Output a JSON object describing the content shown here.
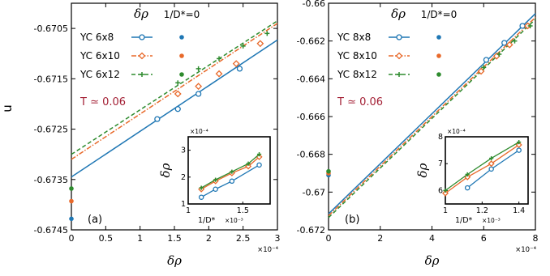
{
  "colors": {
    "blue": "#1f77b4",
    "orange": "#e8692a",
    "green": "#2e8b2e",
    "temp": "#a31f34"
  },
  "chart_data": [
    {
      "type": "scatter",
      "panel_label": "(a)",
      "temperature_label": "T ≃ 0.06",
      "legend_header": {
        "col1": "δρ",
        "col2": "1/D*=0"
      },
      "xlabel": "δρ",
      "ylabel": "u",
      "x_multiplier": "×10⁻⁴",
      "xlim": [
        0,
        3
      ],
      "ylim": [
        -0.6745,
        -0.67
      ],
      "xticks": [
        "0",
        "0.5",
        "1",
        "1.5",
        "2",
        "2.5",
        "3"
      ],
      "xtick_values": [
        0,
        0.5,
        1,
        1.5,
        2,
        2.5,
        3
      ],
      "yticks": [
        "-0.6745",
        "-0.6735",
        "-0.6725",
        "-0.6715",
        "-0.6705"
      ],
      "ytick_values": [
        -0.6745,
        -0.6735,
        -0.6725,
        -0.6715,
        -0.6705
      ],
      "series": [
        {
          "name": "YC 6x8",
          "color": "blue",
          "marker": "circle",
          "line": "solid",
          "x": [
            1.25,
            1.55,
            1.85,
            2.45
          ],
          "y": [
            -0.6723,
            -0.6721,
            -0.6718,
            -0.6713
          ],
          "fit": [
            [
              0,
              -0.67345
            ],
            [
              3,
              -0.67073
            ]
          ],
          "zero_point": -0.67428
        },
        {
          "name": "YC 6x10",
          "color": "orange",
          "marker": "diamond",
          "line": "dashdot",
          "x": [
            1.55,
            1.85,
            2.15,
            2.4,
            2.75
          ],
          "y": [
            -0.6718,
            -0.67165,
            -0.6714,
            -0.6712,
            -0.6708
          ],
          "fit": [
            [
              0,
              -0.6731
            ],
            [
              3,
              -0.6704
            ]
          ],
          "zero_point": -0.67393
        },
        {
          "name": "YC 6x12",
          "color": "green",
          "marker": "plus",
          "line": "dashed",
          "x": [
            1.55,
            1.85,
            2.15,
            2.5,
            2.85
          ],
          "y": [
            -0.67158,
            -0.6713,
            -0.6711,
            -0.67085,
            -0.6706
          ],
          "fit": [
            [
              0,
              -0.673
            ],
            [
              3,
              -0.67035
            ]
          ],
          "zero_point": -0.67368
        }
      ],
      "inset": {
        "xlabel": "1/D*",
        "x_multiplier": "×10⁻³",
        "ylabel": "δρ",
        "y_multiplier": "×10⁻⁴",
        "xlim": [
          1,
          1.75
        ],
        "ylim": [
          1,
          3.5
        ],
        "xticks": [
          "1",
          "1.5"
        ],
        "xtick_values": [
          1,
          1.5
        ],
        "yticks": [
          "1",
          "2",
          "3"
        ],
        "ytick_values": [
          1,
          2,
          3
        ],
        "series": [
          {
            "name": "YC 6x8",
            "color": "blue",
            "marker": "circle",
            "x": [
              1.12,
              1.25,
              1.4,
              1.65
            ],
            "y": [
              1.25,
              1.55,
              1.85,
              2.45
            ]
          },
          {
            "name": "YC 6x10",
            "color": "orange",
            "marker": "diamond",
            "x": [
              1.12,
              1.25,
              1.4,
              1.55,
              1.65
            ],
            "y": [
              1.55,
              1.85,
              2.15,
              2.4,
              2.75
            ]
          },
          {
            "name": "YC 6x12",
            "color": "green",
            "marker": "plus",
            "x": [
              1.12,
              1.25,
              1.4,
              1.55,
              1.65
            ],
            "y": [
              1.6,
              1.9,
              2.2,
              2.5,
              2.85
            ]
          }
        ]
      }
    },
    {
      "type": "scatter",
      "panel_label": "(b)",
      "temperature_label": "T ≃ 0.06",
      "legend_header": {
        "col1": "δρ",
        "col2": "1/D*=0"
      },
      "xlabel": "δρ",
      "ylabel": "",
      "x_multiplier": "×10⁻⁴",
      "xlim": [
        0,
        8
      ],
      "ylim": [
        -0.672,
        -0.66
      ],
      "xticks": [
        "0",
        "2",
        "4",
        "6",
        "8"
      ],
      "xtick_values": [
        0,
        2,
        4,
        6,
        8
      ],
      "yticks": [
        "-0.672",
        "-0.67",
        "-0.668",
        "-0.666",
        "-0.664",
        "-0.662",
        "-0.66"
      ],
      "ytick_values": [
        -0.672,
        -0.67,
        -0.668,
        -0.666,
        -0.664,
        -0.662,
        -0.66
      ],
      "series": [
        {
          "name": "YC 8x8",
          "color": "blue",
          "marker": "circle",
          "line": "solid",
          "x": [
            6.1,
            6.8,
            7.5
          ],
          "y": [
            -0.663,
            -0.6621,
            -0.6612
          ],
          "fit": [
            [
              0,
              -0.67115
            ],
            [
              8,
              -0.66055
            ]
          ],
          "zero_point": -0.6691
        },
        {
          "name": "YC 8x10",
          "color": "orange",
          "marker": "diamond",
          "line": "dashdot",
          "x": [
            5.9,
            6.5,
            7.0,
            7.7
          ],
          "y": [
            -0.6636,
            -0.6628,
            -0.6622,
            -0.6612
          ],
          "fit": [
            [
              0,
              -0.67125
            ],
            [
              8,
              -0.66075
            ]
          ],
          "zero_point": -0.669
        },
        {
          "name": "YC 8x12",
          "color": "green",
          "marker": "plus",
          "line": "dashed",
          "x": [
            6.0,
            6.6,
            7.2,
            7.8
          ],
          "y": [
            -0.6634,
            -0.6627,
            -0.662,
            -0.6612
          ],
          "fit": [
            [
              0,
              -0.67135
            ],
            [
              8,
              -0.66085
            ]
          ],
          "zero_point": -0.6689
        }
      ],
      "inset": {
        "xlabel": "1/D*",
        "x_multiplier": "×10⁻³",
        "ylabel": "δρ",
        "y_multiplier": "×10⁻⁴",
        "xlim": [
          1,
          1.45
        ],
        "ylim": [
          5.5,
          8
        ],
        "xticks": [
          "1",
          "1.2",
          "1.4"
        ],
        "xtick_values": [
          1,
          1.2,
          1.4
        ],
        "yticks": [
          "6",
          "7",
          "8"
        ],
        "ytick_values": [
          6,
          7,
          8
        ],
        "series": [
          {
            "name": "YC 8x8",
            "color": "blue",
            "marker": "circle",
            "x": [
              1.12,
              1.25,
              1.4
            ],
            "y": [
              6.1,
              6.8,
              7.5
            ]
          },
          {
            "name": "YC 8x10",
            "color": "orange",
            "marker": "diamond",
            "x": [
              1.0,
              1.12,
              1.25,
              1.4
            ],
            "y": [
              5.9,
              6.5,
              7.0,
              7.7
            ]
          },
          {
            "name": "YC 8x12",
            "color": "green",
            "marker": "plus",
            "x": [
              1.0,
              1.12,
              1.25,
              1.4
            ],
            "y": [
              6.0,
              6.6,
              7.2,
              7.8
            ]
          }
        ]
      }
    }
  ]
}
